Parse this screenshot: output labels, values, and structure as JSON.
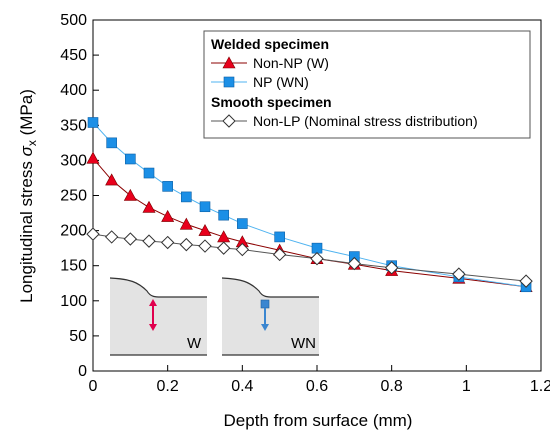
{
  "chart_data": {
    "type": "line",
    "title": "",
    "xlabel": "Depth from surface (mm)",
    "ylabel_main": "Longitudinal stress ",
    "ylabel_symbol": "σ",
    "ylabel_sub": "x",
    "ylabel_unit": " (MPa)",
    "xlim": [
      0,
      1.2
    ],
    "ylim": [
      0,
      500
    ],
    "xticks": [
      "0",
      "0.2",
      "0.4",
      "0.6",
      "0.8",
      "1",
      "1.2"
    ],
    "yticks": [
      "0",
      "50",
      "100",
      "150",
      "200",
      "250",
      "300",
      "350",
      "400",
      "450",
      "500"
    ],
    "grid": false,
    "legend_position": "top-right",
    "legend_groups": [
      {
        "title": "Welded specimen"
      },
      {
        "title": "Smooth specimen"
      }
    ],
    "series": [
      {
        "name": "Non-NP (W)",
        "group": 0,
        "marker": "triangle",
        "color": "#e8001c",
        "line_color": "#8b0000",
        "x": [
          0,
          0.05,
          0.1,
          0.15,
          0.2,
          0.25,
          0.3,
          0.35,
          0.4,
          0.5,
          0.6,
          0.7,
          0.8,
          0.98,
          1.16
        ],
        "y": [
          303,
          272,
          250,
          233,
          220,
          209,
          200,
          191,
          184,
          172,
          160,
          152,
          143,
          132,
          120
        ]
      },
      {
        "name": "NP (WN)",
        "group": 0,
        "marker": "square",
        "color": "#1b8fe6",
        "line_color": "#4fb3f0",
        "x": [
          0,
          0.05,
          0.1,
          0.15,
          0.2,
          0.25,
          0.3,
          0.35,
          0.4,
          0.5,
          0.6,
          0.7,
          0.8,
          0.98,
          1.16
        ],
        "y": [
          354,
          325,
          302,
          282,
          263,
          248,
          234,
          222,
          210,
          191,
          175,
          163,
          150,
          134,
          120
        ]
      },
      {
        "name": "Non-LP (Nominal stress distribution)",
        "group": 1,
        "marker": "diamond",
        "color": "#ffffff",
        "line_color": "#555555",
        "x": [
          0,
          0.05,
          0.1,
          0.15,
          0.2,
          0.25,
          0.3,
          0.35,
          0.4,
          0.5,
          0.6,
          0.7,
          0.8,
          0.98,
          1.16
        ],
        "y": [
          195,
          191,
          188,
          185,
          183,
          180,
          178,
          175,
          173,
          166,
          160,
          153,
          147,
          138,
          128
        ]
      }
    ],
    "insets": [
      {
        "label": "W",
        "arrow_color": "#e0004d"
      },
      {
        "label": "WN",
        "arrow_color": "#3a86d0"
      }
    ]
  }
}
